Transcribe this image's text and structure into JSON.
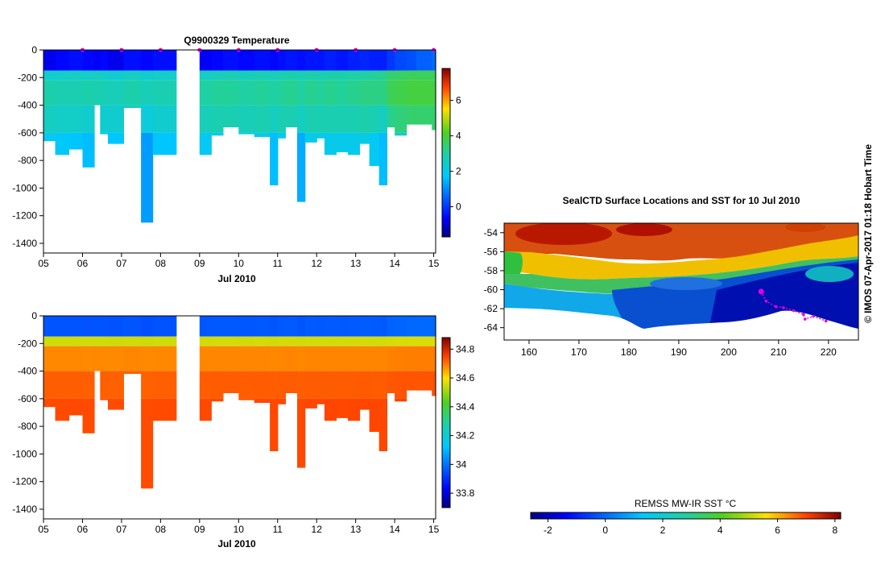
{
  "chart_data": [
    {
      "id": "temperature",
      "type": "heatmap",
      "title": "Q9900329  Temperature",
      "xlabel": "Jul 2010",
      "ylabel": "",
      "x_ticks": [
        "05",
        "06",
        "07",
        "08",
        "09",
        "10",
        "11",
        "12",
        "13",
        "14",
        "15"
      ],
      "x_range": [
        5,
        15.05
      ],
      "y_ticks": [
        0,
        -200,
        -400,
        -600,
        -800,
        -1000,
        -1200,
        -1400
      ],
      "ylim": [
        -1470,
        0
      ],
      "gap": [
        8.4,
        9.0
      ],
      "colorbar": {
        "ticks": [
          0,
          2,
          4,
          6
        ],
        "range": [
          -1.7,
          7.8
        ]
      },
      "profiles": [
        {
          "x": 5.0,
          "w": 0.3,
          "d": 660,
          "v": [
            -0.8,
            2.4,
            2.9,
            2.6,
            1.9
          ]
        },
        {
          "x": 5.3,
          "w": 0.35,
          "d": 760,
          "v": [
            -0.6,
            2.5,
            2.8,
            2.5,
            1.8
          ]
        },
        {
          "x": 5.65,
          "w": 0.35,
          "d": 720,
          "v": [
            -0.5,
            2.6,
            2.8,
            2.5,
            1.7
          ]
        },
        {
          "x": 6.0,
          "w": 0.3,
          "d": 850,
          "v": [
            -0.6,
            2.5,
            2.9,
            2.4,
            1.6
          ]
        },
        {
          "x": 6.3,
          "w": 0.15,
          "d": 400,
          "v": [
            -0.7,
            2.6,
            2.8,
            2.5,
            1.8
          ]
        },
        {
          "x": 6.45,
          "w": 0.2,
          "d": 610,
          "v": [
            -0.6,
            2.5,
            2.8,
            2.4,
            1.7
          ]
        },
        {
          "x": 6.65,
          "w": 0.4,
          "d": 680,
          "v": [
            -0.8,
            2.4,
            2.7,
            2.4,
            1.7
          ]
        },
        {
          "x": 7.05,
          "w": 0.45,
          "d": 420,
          "v": [
            -0.5,
            2.6,
            2.9,
            2.6,
            1.8
          ]
        },
        {
          "x": 7.5,
          "w": 0.3,
          "d": 1250,
          "v": [
            -0.6,
            2.4,
            2.7,
            2.2,
            1.2
          ]
        },
        {
          "x": 7.8,
          "w": 0.6,
          "d": 760,
          "v": [
            -0.5,
            2.5,
            2.8,
            2.4,
            1.7
          ]
        },
        {
          "x": 9.0,
          "w": 0.3,
          "d": 760,
          "v": [
            -0.7,
            2.6,
            3.0,
            2.7,
            1.9
          ]
        },
        {
          "x": 9.3,
          "w": 0.3,
          "d": 620,
          "v": [
            -0.6,
            2.7,
            3.1,
            2.8,
            2.0
          ]
        },
        {
          "x": 9.6,
          "w": 0.4,
          "d": 560,
          "v": [
            -0.5,
            2.8,
            3.1,
            2.8,
            2.0
          ]
        },
        {
          "x": 10.0,
          "w": 0.4,
          "d": 610,
          "v": [
            -0.6,
            2.7,
            3.0,
            2.7,
            1.9
          ]
        },
        {
          "x": 10.4,
          "w": 0.4,
          "d": 630,
          "v": [
            -0.5,
            2.8,
            3.1,
            2.8,
            2.0
          ]
        },
        {
          "x": 10.8,
          "w": 0.2,
          "d": 980,
          "v": [
            -0.6,
            2.7,
            3.0,
            2.6,
            1.6
          ]
        },
        {
          "x": 11.0,
          "w": 0.2,
          "d": 640,
          "v": [
            -0.5,
            2.8,
            3.1,
            2.8,
            2.0
          ]
        },
        {
          "x": 11.2,
          "w": 0.3,
          "d": 560,
          "v": [
            -0.4,
            2.9,
            3.2,
            2.8,
            2.0
          ]
        },
        {
          "x": 11.5,
          "w": 0.2,
          "d": 1100,
          "v": [
            -0.5,
            2.8,
            3.0,
            2.6,
            1.4
          ]
        },
        {
          "x": 11.7,
          "w": 0.3,
          "d": 670,
          "v": [
            -0.4,
            2.9,
            3.2,
            2.8,
            2.0
          ]
        },
        {
          "x": 12.0,
          "w": 0.2,
          "d": 640,
          "v": [
            -0.4,
            2.8,
            3.1,
            2.8,
            2.0
          ]
        },
        {
          "x": 12.2,
          "w": 0.3,
          "d": 760,
          "v": [
            -0.3,
            2.9,
            3.2,
            2.8,
            2.0
          ]
        },
        {
          "x": 12.5,
          "w": 0.3,
          "d": 740,
          "v": [
            -0.4,
            2.9,
            3.1,
            2.8,
            2.0
          ]
        },
        {
          "x": 12.8,
          "w": 0.3,
          "d": 760,
          "v": [
            -0.3,
            3.0,
            3.2,
            2.8,
            2.0
          ]
        },
        {
          "x": 13.1,
          "w": 0.25,
          "d": 680,
          "v": [
            -0.2,
            3.0,
            3.3,
            2.9,
            2.1
          ]
        },
        {
          "x": 13.35,
          "w": 0.25,
          "d": 840,
          "v": [
            -0.3,
            3.1,
            3.3,
            2.8,
            1.9
          ]
        },
        {
          "x": 13.6,
          "w": 0.2,
          "d": 980,
          "v": [
            -0.3,
            3.2,
            3.3,
            2.6,
            1.6
          ]
        },
        {
          "x": 13.8,
          "w": 0.2,
          "d": 560,
          "v": [
            0.0,
            3.5,
            3.7,
            3.2,
            2.2
          ]
        },
        {
          "x": 14.0,
          "w": 0.3,
          "d": 620,
          "v": [
            0.2,
            3.6,
            3.8,
            3.4,
            2.4
          ]
        },
        {
          "x": 14.3,
          "w": 0.25,
          "d": 540,
          "v": [
            0.3,
            3.7,
            3.9,
            3.5,
            2.5
          ]
        },
        {
          "x": 14.55,
          "w": 0.4,
          "d": 540,
          "v": [
            0.5,
            3.7,
            3.9,
            3.5,
            2.6
          ]
        },
        {
          "x": 14.95,
          "w": 0.1,
          "d": 580,
          "v": [
            0.6,
            3.7,
            3.9,
            3.5,
            2.6
          ]
        }
      ],
      "surface_markers": [
        6,
        7,
        8,
        9,
        10,
        11,
        12,
        13,
        14,
        15
      ]
    },
    {
      "id": "salinity",
      "type": "heatmap",
      "title": "",
      "xlabel": "Jul 2010",
      "x_ticks": [
        "05",
        "06",
        "07",
        "08",
        "09",
        "10",
        "11",
        "12",
        "13",
        "14",
        "15"
      ],
      "x_range": [
        5,
        15.05
      ],
      "y_ticks": [
        0,
        -200,
        -400,
        -600,
        -800,
        -1000,
        -1200,
        -1400
      ],
      "ylim": [
        -1470,
        0
      ],
      "colorbar": {
        "ticks": [
          "33.8",
          "34",
          "34.2",
          "34.4",
          "34.6",
          "34.8"
        ],
        "range": [
          33.7,
          34.88
        ]
      },
      "profile_values": [
        33.95,
        34.55,
        34.68,
        34.72,
        34.74
      ]
    },
    {
      "id": "sst_map",
      "type": "heatmap",
      "title": "SealCTD Surface Locations and SST for 10 Jul 2010",
      "x_ticks": [
        "160",
        "170",
        "180",
        "190",
        "200",
        "210",
        "220"
      ],
      "x_range": [
        155,
        226
      ],
      "y_ticks": [
        "-54",
        "-56",
        "-58",
        "-60",
        "-62",
        "-64"
      ],
      "y_range": [
        -53,
        -65.3
      ],
      "colorbar": {
        "label": "REMSS MW-IR SST °C",
        "ticks": [
          "-2",
          "0",
          "2",
          "4",
          "6",
          "8"
        ],
        "range": [
          -2.6,
          8.2
        ]
      },
      "seal_track": [
        [
          206.5,
          -60.2
        ],
        [
          207.5,
          -61.2
        ],
        [
          209.5,
          -61.8
        ],
        [
          211,
          -61.9
        ],
        [
          213,
          -62.2
        ],
        [
          215,
          -62.6
        ],
        [
          215.3,
          -63.1
        ],
        [
          217,
          -62.8
        ],
        [
          219.5,
          -63.3
        ]
      ],
      "seal_current": [
        206.5,
        -60.2
      ]
    }
  ],
  "footer": {
    "credit": "© IMOS 07-Apr-2017 01:18 Hobart Time"
  },
  "colors": {
    "marker": "#e000e0"
  }
}
